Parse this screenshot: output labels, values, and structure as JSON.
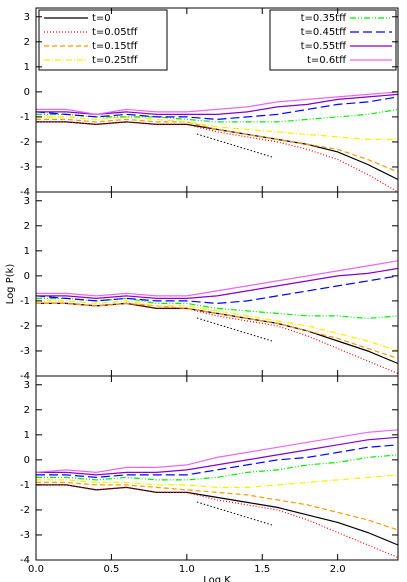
{
  "chart_data": [
    {
      "type": "line",
      "legend": "top",
      "x": [
        0,
        0.2,
        0.4,
        0.6,
        0.8,
        1.0,
        1.2,
        1.4,
        1.6,
        1.8,
        2.0,
        2.2,
        2.4
      ],
      "xlim": [
        0,
        2.4
      ],
      "ylim": [
        -4,
        3.35
      ],
      "xticks": [
        0,
        0.5,
        1,
        1.5,
        2
      ],
      "yticks": [
        3,
        2,
        1,
        0,
        -1,
        -2,
        -3,
        -4
      ],
      "series": [
        {
          "name": "t=0",
          "color": "#000000",
          "dash": "solid",
          "values": [
            -1.2,
            -1.2,
            -1.3,
            -1.2,
            -1.3,
            -1.3,
            -1.5,
            -1.7,
            -1.9,
            -2.1,
            -2.4,
            -2.9,
            -3.5
          ]
        },
        {
          "name": "t=0.05tff",
          "color": "#ff0000",
          "dash": "dot",
          "values": [
            -1.2,
            -1.2,
            -1.3,
            -1.2,
            -1.3,
            -1.3,
            -1.6,
            -1.8,
            -2.0,
            -2.3,
            -2.7,
            -3.3,
            -4.0
          ]
        },
        {
          "name": "t=0.15tff",
          "color": "#ff9900",
          "dash": "dash",
          "values": [
            -1.1,
            -1.1,
            -1.2,
            -1.1,
            -1.2,
            -1.2,
            -1.5,
            -1.7,
            -1.9,
            -2.1,
            -2.3,
            -2.7,
            -3.2
          ]
        },
        {
          "name": "t=0.25tff",
          "color": "#ffee00",
          "dash": "dashdot",
          "values": [
            -1.0,
            -1.0,
            -1.1,
            -1.0,
            -1.1,
            -1.2,
            -1.4,
            -1.5,
            -1.6,
            -1.7,
            -1.8,
            -1.9,
            -1.9
          ]
        },
        {
          "name": "t=0.35tff",
          "color": "#00ee00",
          "dash": "dashdotdot",
          "values": [
            -0.9,
            -0.9,
            -1.0,
            -1.0,
            -1.0,
            -1.1,
            -1.2,
            -1.2,
            -1.2,
            -1.1,
            -1.0,
            -0.9,
            -0.7
          ]
        },
        {
          "name": "t=0.45tff",
          "color": "#0000ff",
          "dash": "longdash",
          "values": [
            -0.8,
            -0.9,
            -1.0,
            -0.9,
            -1.0,
            -1.0,
            -1.1,
            -1.0,
            -0.9,
            -0.7,
            -0.5,
            -0.4,
            -0.2
          ]
        },
        {
          "name": "t=0.55tff",
          "color": "#8800cc",
          "dash": "solid",
          "values": [
            -0.8,
            -0.8,
            -0.9,
            -0.8,
            -0.9,
            -0.9,
            -0.9,
            -0.8,
            -0.6,
            -0.5,
            -0.3,
            -0.2,
            -0.1
          ]
        },
        {
          "name": "t=0.6tff",
          "color": "#ee66ee",
          "dash": "solid",
          "values": [
            -0.7,
            -0.7,
            -0.9,
            -0.7,
            -0.8,
            -0.8,
            -0.7,
            -0.6,
            -0.4,
            -0.3,
            -0.2,
            -0.1,
            0.0
          ]
        }
      ]
    },
    {
      "type": "line",
      "ylabel": "Log P(k)",
      "x": [
        0,
        0.2,
        0.4,
        0.6,
        0.8,
        1.0,
        1.2,
        1.4,
        1.6,
        1.8,
        2.0,
        2.2,
        2.4
      ],
      "xlim": [
        0,
        2.4
      ],
      "ylim": [
        -4,
        3.35
      ],
      "xticks": [
        0,
        0.5,
        1,
        1.5,
        2
      ],
      "yticks": [
        3,
        2,
        1,
        0,
        -1,
        -2,
        -3,
        -4
      ],
      "series": [
        {
          "color": "#000000",
          "dash": "solid",
          "values": [
            -1.1,
            -1.1,
            -1.2,
            -1.1,
            -1.3,
            -1.3,
            -1.5,
            -1.7,
            -1.9,
            -2.2,
            -2.6,
            -3.0,
            -3.5
          ]
        },
        {
          "color": "#ff0000",
          "dash": "dot",
          "values": [
            -1.1,
            -1.1,
            -1.2,
            -1.1,
            -1.3,
            -1.3,
            -1.6,
            -1.8,
            -2.0,
            -2.4,
            -2.9,
            -3.4,
            -3.9
          ]
        },
        {
          "color": "#ff9900",
          "dash": "dash",
          "values": [
            -1.1,
            -1.1,
            -1.2,
            -1.1,
            -1.2,
            -1.3,
            -1.5,
            -1.7,
            -1.9,
            -2.2,
            -2.5,
            -2.9,
            -3.3
          ]
        },
        {
          "color": "#ffee00",
          "dash": "dashdot",
          "values": [
            -1.0,
            -1.0,
            -1.1,
            -1.0,
            -1.2,
            -1.2,
            -1.4,
            -1.6,
            -1.8,
            -2.0,
            -2.3,
            -2.6,
            -3.0
          ]
        },
        {
          "color": "#00ee00",
          "dash": "dashdotdot",
          "values": [
            -0.9,
            -0.9,
            -1.0,
            -0.9,
            -1.1,
            -1.1,
            -1.3,
            -1.4,
            -1.5,
            -1.6,
            -1.6,
            -1.7,
            -1.6
          ]
        },
        {
          "color": "#0000ff",
          "dash": "longdash",
          "values": [
            -0.8,
            -0.9,
            -1.0,
            -0.9,
            -1.0,
            -1.0,
            -1.1,
            -1.0,
            -0.8,
            -0.6,
            -0.4,
            -0.2,
            0.0
          ]
        },
        {
          "color": "#8800cc",
          "dash": "solid",
          "values": [
            -0.8,
            -0.8,
            -0.9,
            -0.8,
            -0.9,
            -0.9,
            -0.8,
            -0.6,
            -0.4,
            -0.2,
            0.0,
            0.1,
            0.3
          ]
        },
        {
          "color": "#ee66ee",
          "dash": "solid",
          "values": [
            -0.7,
            -0.7,
            -0.8,
            -0.7,
            -0.8,
            -0.8,
            -0.6,
            -0.4,
            -0.2,
            0.0,
            0.2,
            0.4,
            0.6
          ]
        }
      ]
    },
    {
      "type": "line",
      "xlabel": "Log K",
      "x": [
        0,
        0.2,
        0.4,
        0.6,
        0.8,
        1.0,
        1.2,
        1.4,
        1.6,
        1.8,
        2.0,
        2.2,
        2.4
      ],
      "xlim": [
        0,
        2.4
      ],
      "ylim": [
        -4,
        3.35
      ],
      "xticks": [
        {
          "value": 0,
          "label": "0.0"
        },
        {
          "value": 0.5,
          "label": "0.5"
        },
        {
          "value": 1,
          "label": "1.0"
        },
        {
          "value": 1.5,
          "label": "1.5"
        },
        {
          "value": 2,
          "label": "2.0"
        }
      ],
      "yticks": [
        3,
        2,
        1,
        0,
        -1,
        -2,
        -3,
        -4
      ],
      "series": [
        {
          "color": "#000000",
          "dash": "solid",
          "values": [
            -1.0,
            -1.0,
            -1.2,
            -1.1,
            -1.3,
            -1.3,
            -1.5,
            -1.7,
            -1.9,
            -2.2,
            -2.5,
            -2.9,
            -3.4
          ]
        },
        {
          "color": "#ff0000",
          "dash": "dot",
          "values": [
            -1.0,
            -1.0,
            -1.2,
            -1.1,
            -1.3,
            -1.3,
            -1.6,
            -1.8,
            -2.0,
            -2.4,
            -2.9,
            -3.4,
            -3.9
          ]
        },
        {
          "color": "#ff9900",
          "dash": "dash",
          "values": [
            -0.9,
            -0.9,
            -1.0,
            -1.0,
            -1.1,
            -1.2,
            -1.3,
            -1.4,
            -1.6,
            -1.8,
            -2.1,
            -2.4,
            -2.8
          ]
        },
        {
          "color": "#ffee00",
          "dash": "dashdot",
          "values": [
            -0.8,
            -0.8,
            -0.9,
            -0.9,
            -1.0,
            -1.0,
            -1.1,
            -1.1,
            -1.0,
            -0.9,
            -0.8,
            -0.7,
            -0.6
          ]
        },
        {
          "color": "#00ee00",
          "dash": "dashdotdot",
          "values": [
            -0.7,
            -0.7,
            -0.8,
            -0.7,
            -0.8,
            -0.8,
            -0.7,
            -0.5,
            -0.4,
            -0.2,
            -0.1,
            0.1,
            0.2
          ]
        },
        {
          "color": "#0000ff",
          "dash": "longdash",
          "values": [
            -0.6,
            -0.6,
            -0.7,
            -0.6,
            -0.6,
            -0.6,
            -0.4,
            -0.2,
            0.0,
            0.1,
            0.3,
            0.5,
            0.6
          ]
        },
        {
          "color": "#8800cc",
          "dash": "solid",
          "values": [
            -0.5,
            -0.5,
            -0.6,
            -0.5,
            -0.5,
            -0.4,
            -0.2,
            0.0,
            0.2,
            0.4,
            0.6,
            0.8,
            0.9
          ]
        },
        {
          "color": "#ee66ee",
          "dash": "solid",
          "values": [
            -0.5,
            -0.4,
            -0.5,
            -0.3,
            -0.3,
            -0.2,
            0.1,
            0.3,
            0.5,
            0.7,
            0.9,
            1.1,
            1.2
          ]
        }
      ]
    }
  ]
}
